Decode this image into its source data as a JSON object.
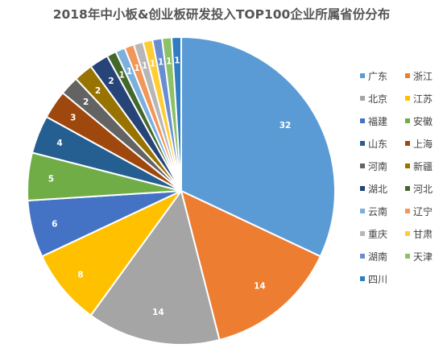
{
  "chart_data": {
    "type": "pie",
    "title": "2018年中小板&创业板研发投入TOP100企业所属省份分布",
    "slices": [
      {
        "name": "广东",
        "value": 32,
        "color": "#5B9BD5"
      },
      {
        "name": "浙江",
        "value": 14,
        "color": "#ED7D31"
      },
      {
        "name": "北京",
        "value": 14,
        "color": "#A5A5A5"
      },
      {
        "name": "江苏",
        "value": 8,
        "color": "#FFC000"
      },
      {
        "name": "福建",
        "value": 6,
        "color": "#4472C4"
      },
      {
        "name": "安徽",
        "value": 5,
        "color": "#70AD47"
      },
      {
        "name": "山东",
        "value": 4,
        "color": "#255E91"
      },
      {
        "name": "上海",
        "value": 3,
        "color": "#9E480E"
      },
      {
        "name": "河南",
        "value": 2,
        "color": "#636363"
      },
      {
        "name": "新疆",
        "value": 2,
        "color": "#997300"
      },
      {
        "name": "湖北",
        "value": 2,
        "color": "#264478"
      },
      {
        "name": "河北",
        "value": 1,
        "color": "#43682B"
      },
      {
        "name": "云南",
        "value": 1,
        "color": "#7CAFDD"
      },
      {
        "name": "辽宁",
        "value": 1,
        "color": "#F1975A"
      },
      {
        "name": "重庆",
        "value": 1,
        "color": "#B7B7B7"
      },
      {
        "name": "甘肃",
        "value": 1,
        "color": "#FFCD33"
      },
      {
        "name": "湖南",
        "value": 1,
        "color": "#698ED0"
      },
      {
        "name": "天津",
        "value": 1,
        "color": "#8CC168"
      },
      {
        "name": "四川",
        "value": 1,
        "color": "#327DC2"
      }
    ],
    "legend_position": "right"
  }
}
